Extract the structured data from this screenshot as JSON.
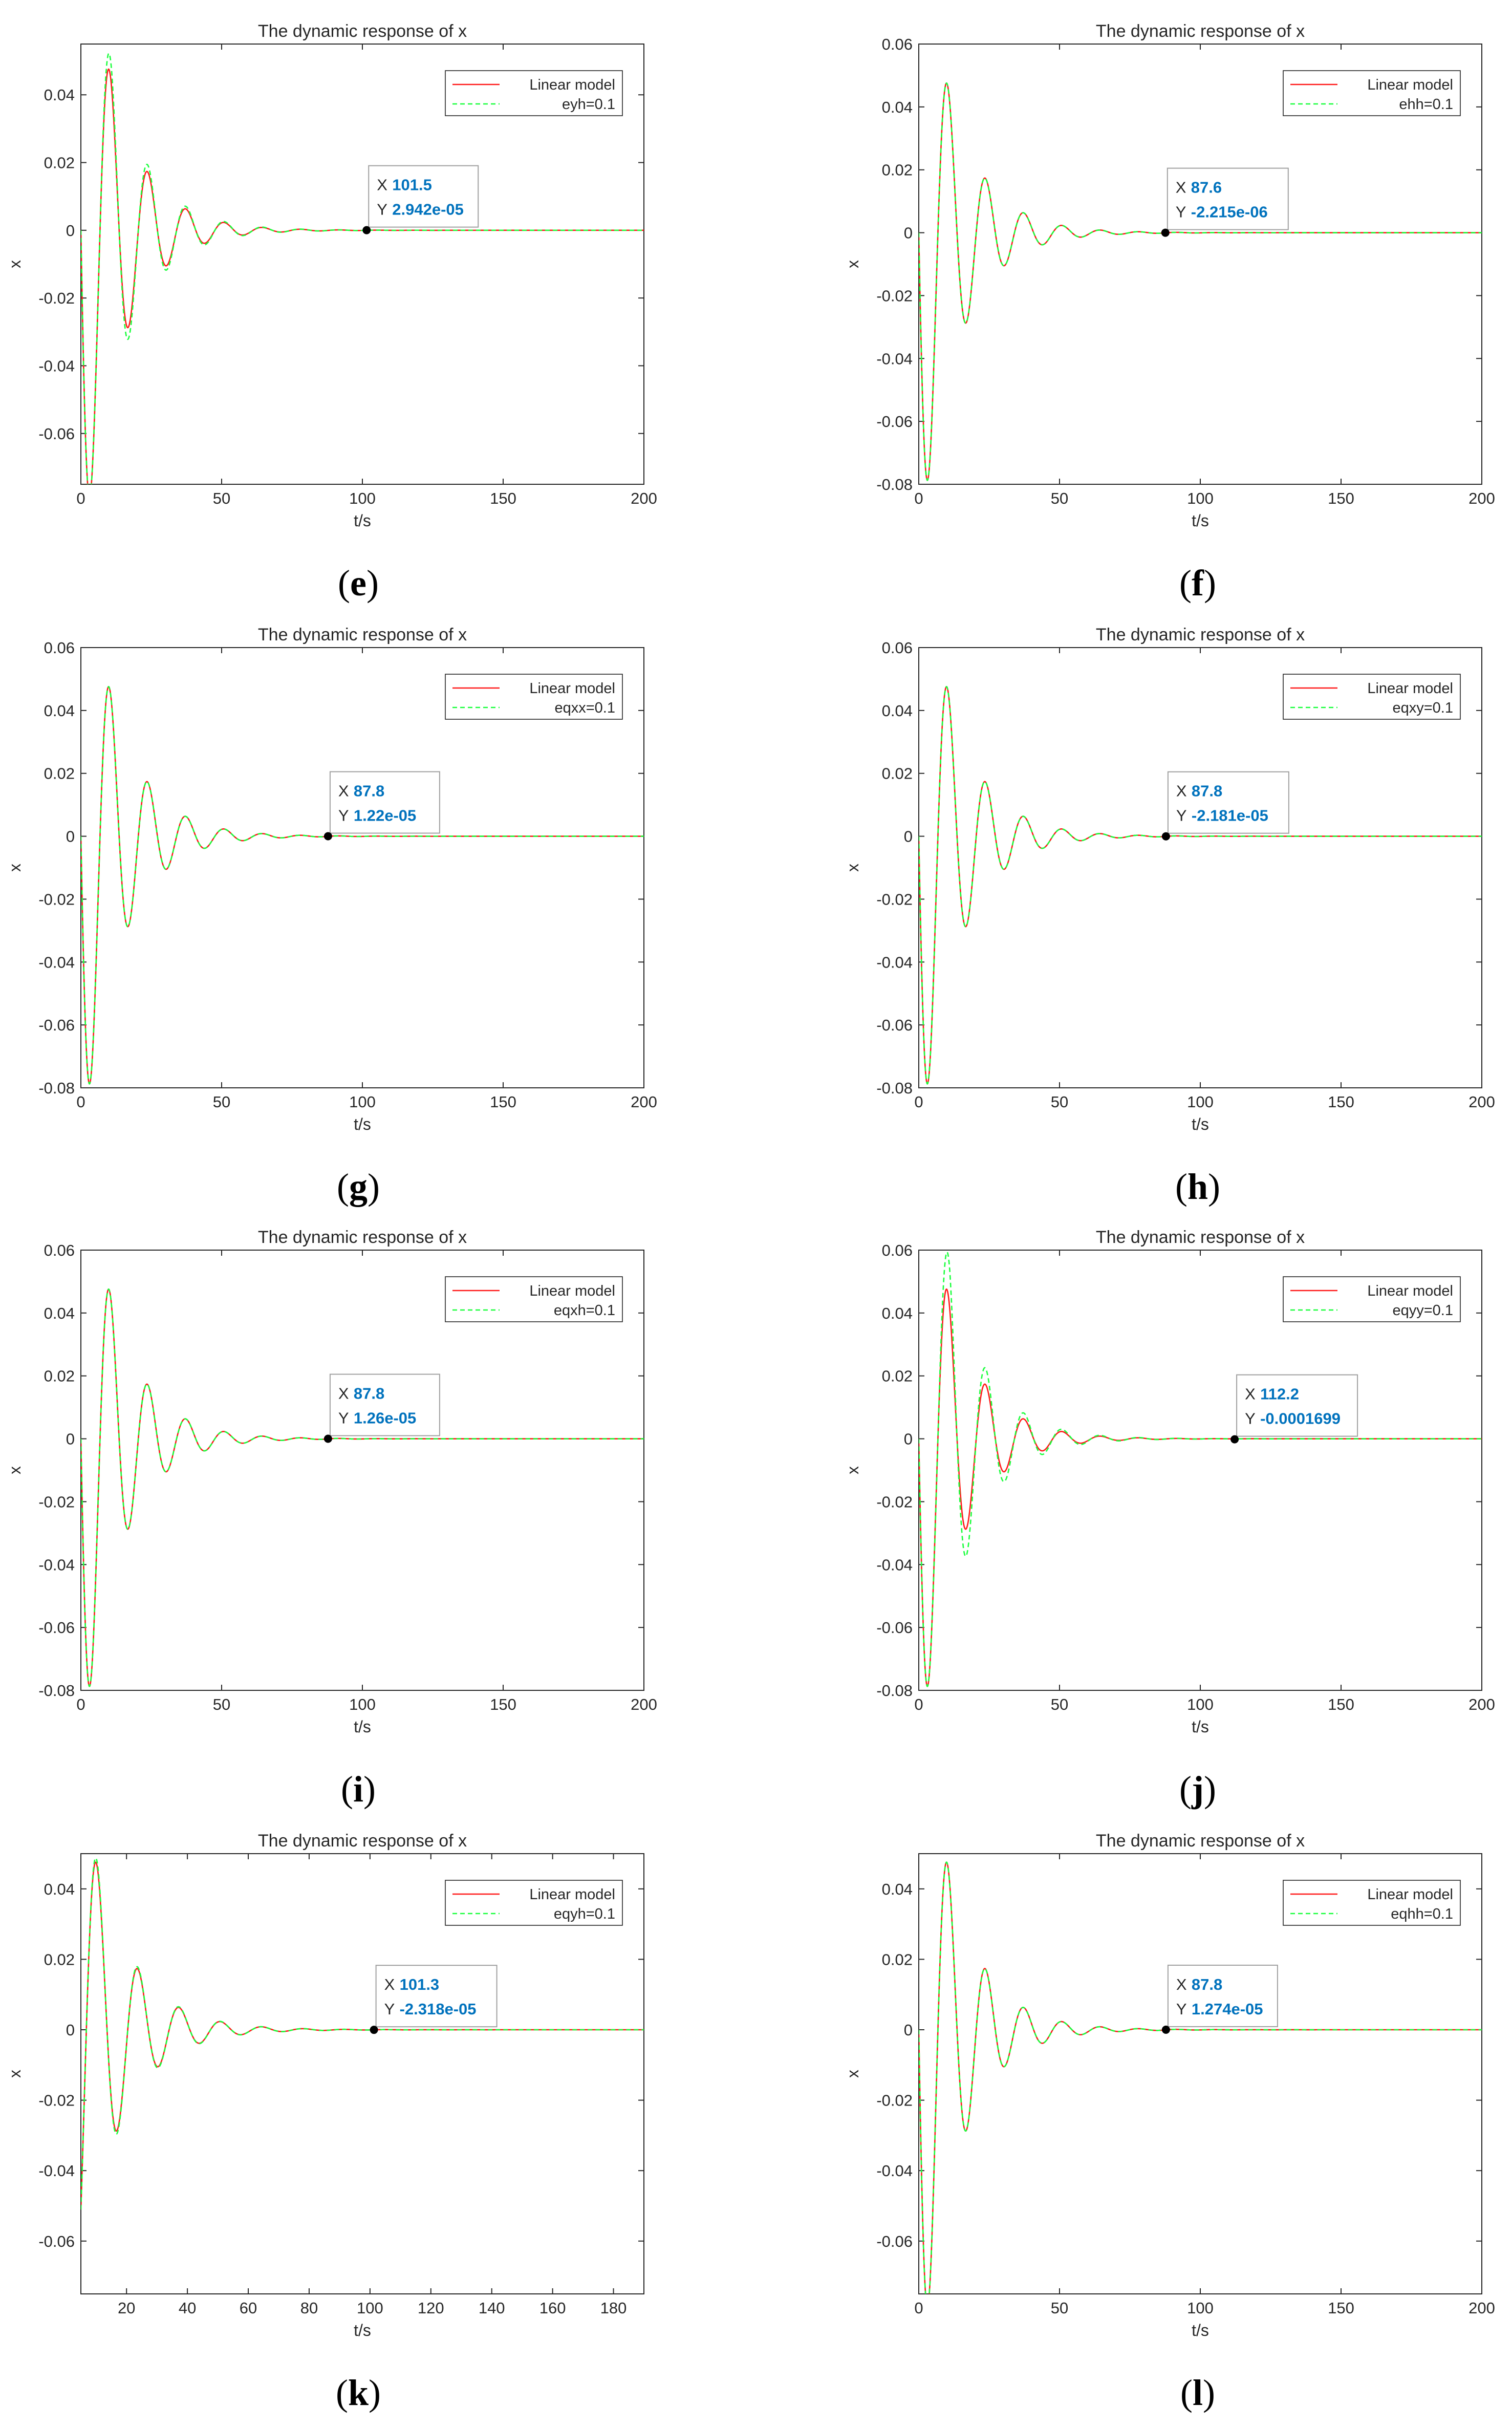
{
  "colors": {
    "linear": "#ff1a1a",
    "perturbed": "#1aff3c",
    "axis": "#262626",
    "datatip_value": "#0072BD"
  },
  "chart_data": [
    {
      "type": "line",
      "panel": "e",
      "title": "The dynamic response of x",
      "xlabel": "t/s",
      "ylabel": "x",
      "xlim": [
        0,
        200
      ],
      "ylim": [
        -0.075,
        0.055
      ],
      "xticks": [
        "0",
        "50",
        "100",
        "150",
        "200"
      ],
      "yticks": [
        "-0.06",
        "-0.04",
        "-0.02",
        "0",
        "0.02",
        "0.04"
      ],
      "series": [
        {
          "name": "Linear model",
          "style": "solid",
          "color": "#ff1a1a",
          "amplitude": 1.0
        },
        {
          "name": "eyh=0.1",
          "style": "dashed",
          "color": "#1aff3c",
          "amplitude": 1.12
        }
      ],
      "datatip": {
        "x": "101.5",
        "y": "2.942e-05"
      },
      "legend_position": "top-right"
    },
    {
      "type": "line",
      "panel": "f",
      "title": "The dynamic response of x",
      "xlabel": "t/s",
      "ylabel": "x",
      "xlim": [
        0,
        200
      ],
      "ylim": [
        -0.08,
        0.06
      ],
      "xticks": [
        "0",
        "50",
        "100",
        "150",
        "200"
      ],
      "yticks": [
        "-0.08",
        "-0.06",
        "-0.04",
        "-0.02",
        "0",
        "0.02",
        "0.04",
        "0.06"
      ],
      "series": [
        {
          "name": "Linear model",
          "style": "solid",
          "color": "#ff1a1a",
          "amplitude": 1.0
        },
        {
          "name": "ehh=0.1",
          "style": "dashed",
          "color": "#1aff3c",
          "amplitude": 1.0
        }
      ],
      "datatip": {
        "x": "87.6",
        "y": "-2.215e-06"
      },
      "legend_position": "top-right"
    },
    {
      "type": "line",
      "panel": "g",
      "title": "The dynamic response of x",
      "xlabel": "t/s",
      "ylabel": "x",
      "xlim": [
        0,
        200
      ],
      "ylim": [
        -0.08,
        0.06
      ],
      "xticks": [
        "0",
        "50",
        "100",
        "150",
        "200"
      ],
      "yticks": [
        "-0.08",
        "-0.06",
        "-0.04",
        "-0.02",
        "0",
        "0.02",
        "0.04",
        "0.06"
      ],
      "series": [
        {
          "name": "Linear model",
          "style": "solid",
          "color": "#ff1a1a",
          "amplitude": 1.0
        },
        {
          "name": "eqxx=0.1",
          "style": "dashed",
          "color": "#1aff3c",
          "amplitude": 1.0
        }
      ],
      "datatip": {
        "x": "87.8",
        "y": "1.22e-05"
      },
      "legend_position": "top-right"
    },
    {
      "type": "line",
      "panel": "h",
      "title": "The dynamic response of x",
      "xlabel": "t/s",
      "ylabel": "x",
      "xlim": [
        0,
        200
      ],
      "ylim": [
        -0.08,
        0.06
      ],
      "xticks": [
        "0",
        "50",
        "100",
        "150",
        "200"
      ],
      "yticks": [
        "-0.08",
        "-0.06",
        "-0.04",
        "-0.02",
        "0",
        "0.02",
        "0.04",
        "0.06"
      ],
      "series": [
        {
          "name": "Linear model",
          "style": "solid",
          "color": "#ff1a1a",
          "amplitude": 1.0
        },
        {
          "name": "eqxy=0.1",
          "style": "dashed",
          "color": "#1aff3c",
          "amplitude": 1.0
        }
      ],
      "datatip": {
        "x": "87.8",
        "y": "-2.181e-05"
      },
      "legend_position": "top-right"
    },
    {
      "type": "line",
      "panel": "i",
      "title": "The dynamic response of x",
      "xlabel": "t/s",
      "ylabel": "x",
      "xlim": [
        0,
        200
      ],
      "ylim": [
        -0.08,
        0.06
      ],
      "xticks": [
        "0",
        "50",
        "100",
        "150",
        "200"
      ],
      "yticks": [
        "-0.08",
        "-0.06",
        "-0.04",
        "-0.02",
        "0",
        "0.02",
        "0.04",
        "0.06"
      ],
      "series": [
        {
          "name": "Linear model",
          "style": "solid",
          "color": "#ff1a1a",
          "amplitude": 1.0
        },
        {
          "name": "eqxh=0.1",
          "style": "dashed",
          "color": "#1aff3c",
          "amplitude": 1.0
        }
      ],
      "datatip": {
        "x": "87.8",
        "y": "1.26e-05"
      },
      "legend_position": "top-right"
    },
    {
      "type": "line",
      "panel": "j",
      "title": "The dynamic response of x",
      "xlabel": "t/s",
      "ylabel": "x",
      "xlim": [
        0,
        200
      ],
      "ylim": [
        -0.08,
        0.06
      ],
      "xticks": [
        "0",
        "50",
        "100",
        "150",
        "200"
      ],
      "yticks": [
        "-0.08",
        "-0.06",
        "-0.04",
        "-0.02",
        "0",
        "0.02",
        "0.04",
        "0.06"
      ],
      "series": [
        {
          "name": "Linear model",
          "style": "solid",
          "color": "#ff1a1a",
          "amplitude": 1.0
        },
        {
          "name": "eqyy=0.1",
          "style": "dashed",
          "color": "#1aff3c",
          "amplitude": 1.3
        }
      ],
      "datatip": {
        "x": "112.2",
        "y": "-0.0001699"
      },
      "legend_position": "top-right"
    },
    {
      "type": "line",
      "panel": "k",
      "title": "The dynamic response of x",
      "xlabel": "t/s",
      "ylabel": "x",
      "xlim": [
        5,
        190
      ],
      "ylim": [
        -0.075,
        0.05
      ],
      "xticks": [
        "20",
        "40",
        "60",
        "80",
        "100",
        "120",
        "140",
        "160",
        "180"
      ],
      "yticks": [
        "-0.06",
        "-0.04",
        "-0.02",
        "0",
        "0.02",
        "0.04"
      ],
      "series": [
        {
          "name": "Linear model",
          "style": "solid",
          "color": "#ff1a1a",
          "amplitude": 1.0
        },
        {
          "name": "eqyh=0.1",
          "style": "dashed",
          "color": "#1aff3c",
          "amplitude": 1.03
        }
      ],
      "datatip": {
        "x": "101.3",
        "y": "-2.318e-05"
      },
      "legend_position": "top-right"
    },
    {
      "type": "line",
      "panel": "l",
      "title": "The dynamic response of x",
      "xlabel": "t/s",
      "ylabel": "x",
      "xlim": [
        0,
        200
      ],
      "ylim": [
        -0.075,
        0.05
      ],
      "xticks": [
        "0",
        "50",
        "100",
        "150",
        "200"
      ],
      "yticks": [
        "-0.06",
        "-0.04",
        "-0.02",
        "0",
        "0.02",
        "0.04"
      ],
      "series": [
        {
          "name": "Linear model",
          "style": "solid",
          "color": "#ff1a1a",
          "amplitude": 1.0
        },
        {
          "name": "eqhh=0.1",
          "style": "dashed",
          "color": "#1aff3c",
          "amplitude": 1.0
        }
      ],
      "datatip": {
        "x": "87.8",
        "y": "1.274e-05"
      },
      "legend_position": "top-right"
    }
  ]
}
